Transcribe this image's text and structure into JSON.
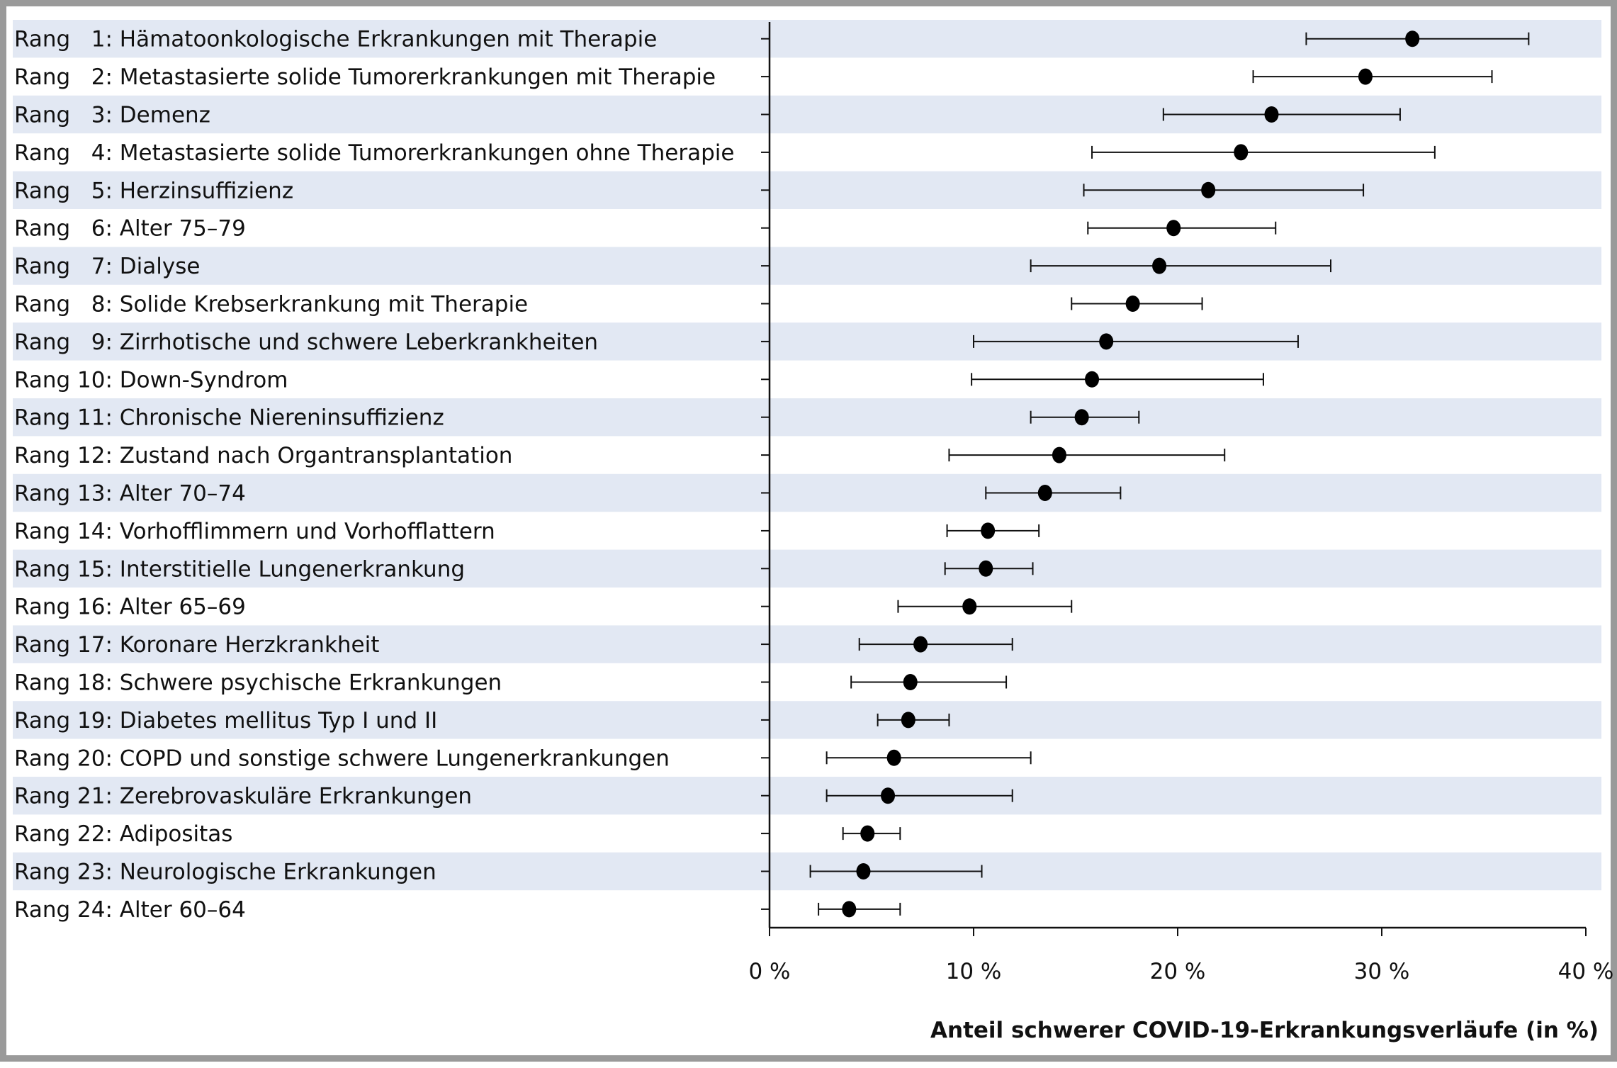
{
  "chart_data": {
    "type": "forest",
    "xlabel": "Anteil schwerer COVID-19-Erkrankungsverläufe (in %)",
    "xlim": [
      0,
      40
    ],
    "xticks": [
      "0 %",
      "10 %",
      "20 %",
      "30 %",
      "40 %"
    ],
    "xtick_values": [
      0,
      10,
      20,
      30,
      40
    ],
    "row_band_color": "#e2e8f3",
    "marker_color": "#000000",
    "rows": [
      {
        "rank": "1",
        "label": "Hämatoonkologische Erkrankungen mit Therapie",
        "estimate": 31.5,
        "ci_low": 26.3,
        "ci_high": 37.2
      },
      {
        "rank": "2",
        "label": "Metastasierte solide Tumorerkrankungen mit Therapie",
        "estimate": 29.2,
        "ci_low": 23.7,
        "ci_high": 35.4
      },
      {
        "rank": "3",
        "label": "Demenz",
        "estimate": 24.6,
        "ci_low": 19.3,
        "ci_high": 30.9
      },
      {
        "rank": "4",
        "label": "Metastasierte solide Tumorerkrankungen ohne Therapie",
        "estimate": 23.1,
        "ci_low": 15.8,
        "ci_high": 32.6
      },
      {
        "rank": "5",
        "label": "Herzinsuffizienz",
        "estimate": 21.5,
        "ci_low": 15.4,
        "ci_high": 29.1
      },
      {
        "rank": "6",
        "label": "Alter 75–79",
        "estimate": 19.8,
        "ci_low": 15.6,
        "ci_high": 24.8
      },
      {
        "rank": "7",
        "label": "Dialyse",
        "estimate": 19.1,
        "ci_low": 12.8,
        "ci_high": 27.5
      },
      {
        "rank": "8",
        "label": "Solide Krebserkrankung mit Therapie",
        "estimate": 17.8,
        "ci_low": 14.8,
        "ci_high": 21.2
      },
      {
        "rank": "9",
        "label": "Zirrhotische und schwere Leberkrankheiten",
        "estimate": 16.5,
        "ci_low": 10.0,
        "ci_high": 25.9
      },
      {
        "rank": "10",
        "label": "Down-Syndrom",
        "estimate": 15.8,
        "ci_low": 9.9,
        "ci_high": 24.2
      },
      {
        "rank": "11",
        "label": "Chronische Niereninsuffizienz",
        "estimate": 15.3,
        "ci_low": 12.8,
        "ci_high": 18.1
      },
      {
        "rank": "12",
        "label": "Zustand nach Organtransplantation",
        "estimate": 14.2,
        "ci_low": 8.8,
        "ci_high": 22.3
      },
      {
        "rank": "13",
        "label": "Alter 70–74",
        "estimate": 13.5,
        "ci_low": 10.6,
        "ci_high": 17.2
      },
      {
        "rank": "14",
        "label": "Vorhofflimmern und Vorhofflattern",
        "estimate": 10.7,
        "ci_low": 8.7,
        "ci_high": 13.2
      },
      {
        "rank": "15",
        "label": "Interstitielle Lungenerkrankung",
        "estimate": 10.6,
        "ci_low": 8.6,
        "ci_high": 12.9
      },
      {
        "rank": "16",
        "label": "Alter 65–69",
        "estimate": 9.8,
        "ci_low": 6.3,
        "ci_high": 14.8
      },
      {
        "rank": "17",
        "label": "Koronare Herzkrankheit",
        "estimate": 7.4,
        "ci_low": 4.4,
        "ci_high": 11.9
      },
      {
        "rank": "18",
        "label": "Schwere psychische Erkrankungen",
        "estimate": 6.9,
        "ci_low": 4.0,
        "ci_high": 11.6
      },
      {
        "rank": "19",
        "label": "Diabetes mellitus Typ I und II",
        "estimate": 6.8,
        "ci_low": 5.3,
        "ci_high": 8.8
      },
      {
        "rank": "20",
        "label": "COPD und sonstige schwere Lungenerkrankungen",
        "estimate": 6.1,
        "ci_low": 2.8,
        "ci_high": 12.8
      },
      {
        "rank": "21",
        "label": "Zerebrovaskuläre Erkrankungen",
        "estimate": 5.8,
        "ci_low": 2.8,
        "ci_high": 11.9
      },
      {
        "rank": "22",
        "label": "Adipositas",
        "estimate": 4.8,
        "ci_low": 3.6,
        "ci_high": 6.4
      },
      {
        "rank": "23",
        "label": "Neurologische Erkrankungen",
        "estimate": 4.6,
        "ci_low": 2.0,
        "ci_high": 10.4
      },
      {
        "rank": "24",
        "label": "Alter 60–64",
        "estimate": 3.9,
        "ci_low": 2.4,
        "ci_high": 6.4
      }
    ]
  }
}
